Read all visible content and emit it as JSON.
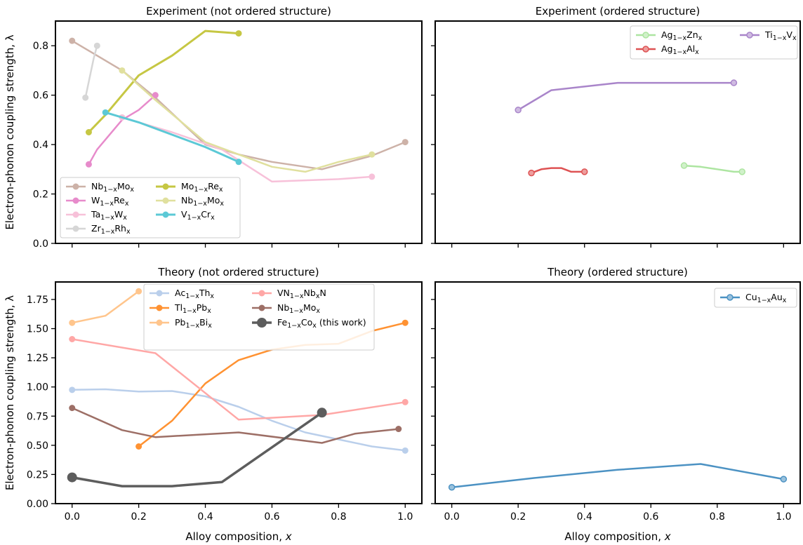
{
  "figure": {
    "xlabel": "Alloy composition, x",
    "ylabel": "Electron-phonon coupling strength, λ"
  },
  "chart_data": [
    {
      "type": "line",
      "title": "Experiment (not ordered structure)",
      "xlim": [
        -0.05,
        1.05
      ],
      "ylim": [
        0,
        0.9
      ],
      "xticks": [
        0.0,
        0.2,
        0.4,
        0.6,
        0.8,
        1.0
      ],
      "yticks": [
        0.0,
        0.2,
        0.4,
        0.6,
        0.8
      ],
      "ytick_labels": [
        "0.0",
        "0.2",
        "0.4",
        "0.6",
        "0.8"
      ],
      "show_x_tick_labels": false,
      "show_y_label": true,
      "legend": {
        "position": "lower-left",
        "columns": 2
      },
      "series": [
        {
          "name": "Nb1−xMox",
          "base": "Nb",
          "sub1": "1−x",
          "mid": "Mo",
          "sub2": "x",
          "tail": "",
          "color": "#c4a499",
          "width": 2.5,
          "marker_r": 4.5,
          "x": [
            0.0,
            0.15,
            0.25,
            0.4,
            0.5,
            0.6,
            0.75,
            0.9,
            1.0
          ],
          "y": [
            0.82,
            0.7,
            0.59,
            0.4,
            0.36,
            0.33,
            0.3,
            0.355,
            0.41
          ],
          "markers": [
            0,
            8
          ]
        },
        {
          "name": "W1−xRex",
          "base": "W",
          "sub1": "1−x",
          "mid": "Re",
          "sub2": "x",
          "tail": "",
          "color": "#e377c2",
          "width": 2.5,
          "marker_r": 4.5,
          "x": [
            0.05,
            0.075,
            0.15,
            0.2,
            0.25
          ],
          "y": [
            0.32,
            0.38,
            0.5,
            0.54,
            0.6
          ],
          "markers": [
            0,
            4
          ]
        },
        {
          "name": "Ta1−xWx",
          "base": "Ta",
          "sub1": "1−x",
          "mid": "W",
          "sub2": "x",
          "tail": "",
          "color": "#f5b6d2",
          "width": 2.5,
          "marker_r": 4.5,
          "x": [
            0.15,
            0.3,
            0.45,
            0.6,
            0.8,
            0.9
          ],
          "y": [
            0.51,
            0.45,
            0.38,
            0.25,
            0.26,
            0.27
          ],
          "markers": [
            0,
            5
          ]
        },
        {
          "name": "Zr1−xRhx",
          "base": "Zr",
          "sub1": "1−x",
          "mid": "Rh",
          "sub2": "x",
          "tail": "",
          "color": "#cfcfcf",
          "width": 2.5,
          "marker_r": 4.5,
          "x": [
            0.04,
            0.065,
            0.075
          ],
          "y": [
            0.59,
            0.75,
            0.8
          ],
          "markers": [
            0,
            2
          ]
        },
        {
          "name": "Mo1−xRex",
          "base": "Mo",
          "sub1": "1−x",
          "mid": "Re",
          "sub2": "x",
          "tail": "",
          "color": "#bcbd22",
          "width": 3,
          "marker_r": 4.5,
          "x": [
            0.05,
            0.1,
            0.2,
            0.3,
            0.4,
            0.5
          ],
          "y": [
            0.45,
            0.52,
            0.68,
            0.76,
            0.86,
            0.85
          ],
          "markers": [
            0,
            5
          ]
        },
        {
          "name": "Nb1−xMox",
          "base": "Nb",
          "sub1": "1−x",
          "mid": "Mo",
          "sub2": "x",
          "tail": "",
          "color": "#dbdb8d",
          "width": 2.5,
          "marker_r": 4.5,
          "x": [
            0.15,
            0.25,
            0.4,
            0.6,
            0.7,
            0.8,
            0.9
          ],
          "y": [
            0.7,
            0.58,
            0.41,
            0.31,
            0.29,
            0.33,
            0.36
          ],
          "markers": [
            0,
            6
          ]
        },
        {
          "name": "V1−xCrx",
          "base": "V",
          "sub1": "1−x",
          "mid": "Cr",
          "sub2": "x",
          "tail": "",
          "color": "#3fbfcf",
          "width": 3,
          "marker_r": 4.5,
          "x": [
            0.1,
            0.2,
            0.3,
            0.4,
            0.5
          ],
          "y": [
            0.53,
            0.49,
            0.44,
            0.39,
            0.33
          ],
          "markers": [
            0,
            4
          ]
        }
      ]
    },
    {
      "type": "line",
      "title": "Experiment (ordered structure)",
      "xlim": [
        -0.05,
        1.05
      ],
      "ylim": [
        0,
        0.9
      ],
      "xticks": [
        0.0,
        0.2,
        0.4,
        0.6,
        0.8,
        1.0
      ],
      "yticks": [
        0.0,
        0.2,
        0.4,
        0.6,
        0.8
      ],
      "show_x_tick_labels": false,
      "show_y_label": false,
      "legend": {
        "position": "upper-right",
        "columns": 2
      },
      "series": [
        {
          "name": "Ag1−xZnx",
          "base": "Ag",
          "sub1": "1−x",
          "mid": "Zn",
          "sub2": "x",
          "tail": "",
          "color": "#98df8a",
          "width": 2.5,
          "marker_r": 4,
          "open": true,
          "x": [
            0.7,
            0.75,
            0.8,
            0.85,
            0.875
          ],
          "y": [
            0.315,
            0.31,
            0.3,
            0.29,
            0.29
          ],
          "markers": [
            0,
            4
          ]
        },
        {
          "name": "Ag1−xAlx",
          "base": "Ag",
          "sub1": "1−x",
          "mid": "Al",
          "sub2": "x",
          "tail": "",
          "color": "#d62728",
          "width": 2.5,
          "marker_r": 4,
          "open": true,
          "x": [
            0.24,
            0.27,
            0.3,
            0.33,
            0.36,
            0.4
          ],
          "y": [
            0.285,
            0.3,
            0.305,
            0.305,
            0.29,
            0.29
          ],
          "markers": [
            0,
            5
          ]
        },
        {
          "name": "Ti1−xVx",
          "base": "Ti",
          "sub1": "1−x",
          "mid": "V",
          "sub2": "x",
          "tail": "",
          "color": "#9467bd",
          "width": 2.5,
          "marker_r": 4,
          "open": true,
          "x": [
            0.2,
            0.3,
            0.5,
            0.7,
            0.85
          ],
          "y": [
            0.54,
            0.62,
            0.65,
            0.65,
            0.65
          ],
          "markers": [
            0,
            4
          ]
        }
      ]
    },
    {
      "type": "line",
      "title": "Theory (not ordered structure)",
      "xlim": [
        -0.05,
        1.05
      ],
      "ylim": [
        0,
        1.9
      ],
      "xticks": [
        0.0,
        0.2,
        0.4,
        0.6,
        0.8,
        1.0
      ],
      "xtick_labels": [
        "0.0",
        "0.2",
        "0.4",
        "0.6",
        "0.8",
        "1.0"
      ],
      "yticks": [
        0.0,
        0.25,
        0.5,
        0.75,
        1.0,
        1.25,
        1.5,
        1.75
      ],
      "ytick_labels": [
        "0.00",
        "0.25",
        "0.50",
        "0.75",
        "1.00",
        "1.25",
        "1.50",
        "1.75"
      ],
      "show_x_tick_labels": true,
      "show_y_label": true,
      "legend": {
        "position": "upper-center",
        "columns": 2
      },
      "series": [
        {
          "name": "Ac1−xThx",
          "base": "Ac",
          "sub1": "1−x",
          "mid": "Th",
          "sub2": "x",
          "tail": "",
          "color": "#aec7e8",
          "width": 2.5,
          "marker_r": 4.5,
          "x": [
            0.0,
            0.1,
            0.2,
            0.3,
            0.4,
            0.5,
            0.6,
            0.7,
            0.8,
            0.9,
            1.0
          ],
          "y": [
            0.975,
            0.98,
            0.96,
            0.965,
            0.92,
            0.83,
            0.71,
            0.61,
            0.55,
            0.49,
            0.455
          ],
          "markers": [
            0,
            10
          ]
        },
        {
          "name": "Tl1−xPbx",
          "base": "Tl",
          "sub1": "1−x",
          "mid": "Pb",
          "sub2": "x",
          "tail": "",
          "color": "#ff7f0e",
          "width": 2.5,
          "marker_r": 4.5,
          "x": [
            0.2,
            0.3,
            0.4,
            0.5,
            0.6,
            0.7,
            0.8,
            0.9,
            1.0
          ],
          "y": [
            0.49,
            0.71,
            1.03,
            1.23,
            1.32,
            1.36,
            1.37,
            1.48,
            1.55
          ],
          "markers": [
            0,
            8
          ]
        },
        {
          "name": "Pb1−xBix",
          "base": "Pb",
          "sub1": "1−x",
          "mid": "Bi",
          "sub2": "x",
          "tail": "",
          "color": "#ffbb78",
          "width": 2.5,
          "marker_r": 4.5,
          "x": [
            0.0,
            0.1,
            0.2
          ],
          "y": [
            1.55,
            1.61,
            1.82
          ],
          "markers": [
            0,
            2
          ]
        },
        {
          "name": "VN1−xNbxN",
          "base": "VN",
          "sub1": "1−x",
          "mid": "Nb",
          "sub2": "x",
          "tail": "N",
          "color": "#ff9896",
          "width": 2.5,
          "marker_r": 4.5,
          "x": [
            0.0,
            0.25,
            0.5,
            0.75,
            1.0
          ],
          "y": [
            1.41,
            1.29,
            0.72,
            0.76,
            0.87
          ],
          "markers": [
            0,
            4
          ]
        },
        {
          "name": "Nb1−xMox",
          "base": "Nb",
          "sub1": "1−x",
          "mid": "Mo",
          "sub2": "x",
          "tail": "",
          "color": "#8c564b",
          "width": 2.5,
          "marker_r": 4.5,
          "x": [
            0.0,
            0.15,
            0.25,
            0.5,
            0.75,
            0.85,
            0.98
          ],
          "y": [
            0.82,
            0.63,
            0.57,
            0.61,
            0.52,
            0.6,
            0.64
          ],
          "markers": [
            0,
            6
          ]
        },
        {
          "name": "Fe1−xCox (this work)",
          "base": "Fe",
          "sub1": "1−x",
          "mid": "Co",
          "sub2": "x",
          "tail": " (this work)",
          "color": "#404040",
          "width": 3.5,
          "marker_r": 7,
          "x": [
            0.0,
            0.15,
            0.3,
            0.45,
            0.75
          ],
          "y": [
            0.225,
            0.15,
            0.15,
            0.185,
            0.78
          ],
          "markers": [
            0,
            4
          ]
        }
      ]
    },
    {
      "type": "line",
      "title": "Theory (ordered structure)",
      "xlim": [
        -0.05,
        1.05
      ],
      "ylim": [
        0,
        1.9
      ],
      "xticks": [
        0.0,
        0.2,
        0.4,
        0.6,
        0.8,
        1.0
      ],
      "xtick_labels": [
        "0.0",
        "0.2",
        "0.4",
        "0.6",
        "0.8",
        "1.0"
      ],
      "yticks": [
        0.0,
        0.25,
        0.5,
        0.75,
        1.0,
        1.25,
        1.5,
        1.75
      ],
      "show_x_tick_labels": true,
      "show_y_label": false,
      "legend": {
        "position": "upper-right",
        "columns": 1
      },
      "series": [
        {
          "name": "Cu1−xAux",
          "base": "Cu",
          "sub1": "1−x",
          "mid": "Au",
          "sub2": "x",
          "tail": "",
          "color": "#1f77b4",
          "width": 2.5,
          "marker_r": 4,
          "open": true,
          "x": [
            0.0,
            0.25,
            0.5,
            0.75,
            1.0
          ],
          "y": [
            0.14,
            0.22,
            0.29,
            0.34,
            0.21
          ],
          "markers": [
            0,
            4
          ]
        }
      ]
    }
  ]
}
